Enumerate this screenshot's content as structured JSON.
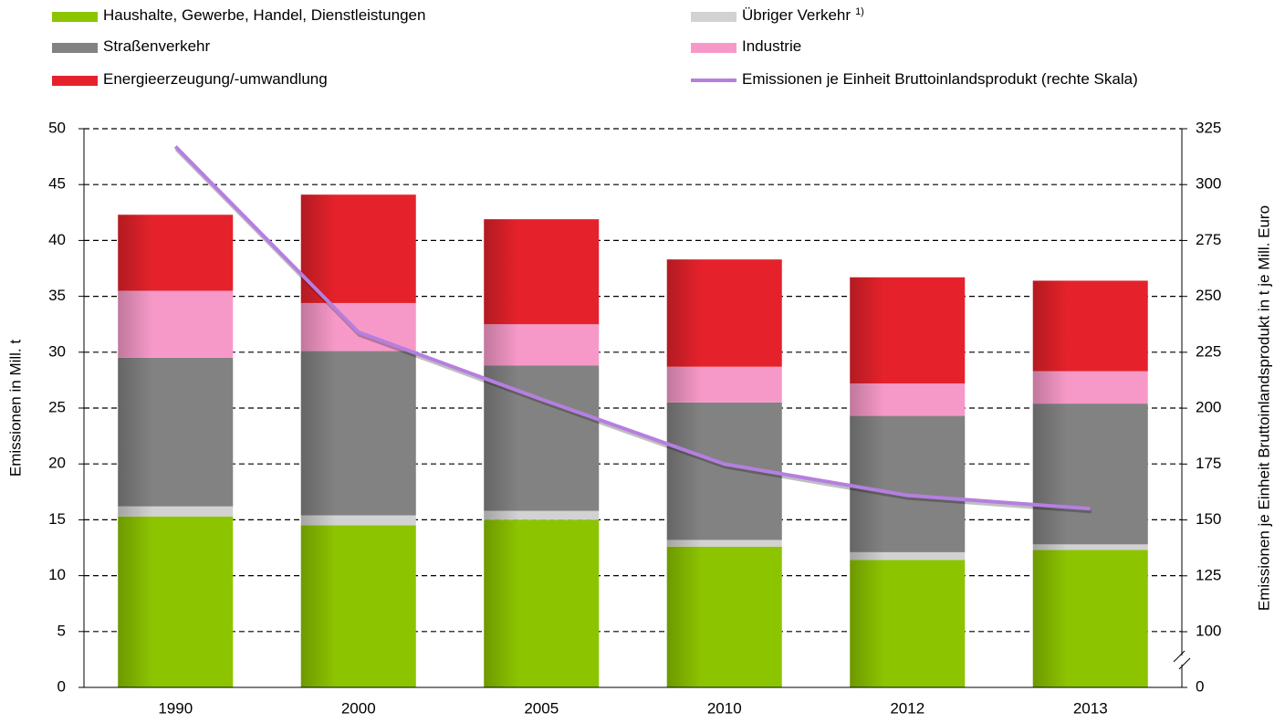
{
  "chart_data": {
    "type": "stacked_bar_line",
    "categories": [
      "1990",
      "2000",
      "2005",
      "2010",
      "2012",
      "2013"
    ],
    "series": [
      {
        "name": "Haushalte, Gewerbe, Handel, Dienstleistungen",
        "color": "#8cc400",
        "values": [
          15.3,
          14.5,
          15.0,
          12.6,
          11.4,
          12.3
        ]
      },
      {
        "name": "Übriger Verkehr",
        "note": "1)",
        "color": "#d2d2d2",
        "values": [
          0.9,
          0.9,
          0.8,
          0.6,
          0.7,
          0.5
        ]
      },
      {
        "name": "Straßenverkehr",
        "color": "#828282",
        "values": [
          13.3,
          14.7,
          13.0,
          12.3,
          12.2,
          12.6
        ]
      },
      {
        "name": "Industrie",
        "color": "#f799c8",
        "values": [
          6.0,
          4.3,
          3.7,
          3.2,
          2.9,
          2.9
        ]
      },
      {
        "name": "Energieerzeugung/-umwandlung",
        "color": "#e5222b",
        "values": [
          6.8,
          9.7,
          9.4,
          9.6,
          9.5,
          8.1
        ]
      },
      {
        "name": "Emissionen je Einheit Bruttoinlandsprodukt (rechte Skala)",
        "color": "#b57fe0",
        "axis": "y2",
        "type": "line",
        "values": [
          317,
          234,
          204,
          175,
          161,
          155
        ]
      }
    ],
    "y_label": "Emissionen in Mill. t",
    "y2_label": "Emissionen je Einheit Bruttoinlandsprodukt in t je Mill. Euro",
    "ylim": [
      0,
      50
    ],
    "yticks": [
      0,
      5,
      10,
      15,
      20,
      25,
      30,
      35,
      40,
      45,
      50
    ],
    "y2lim": [
      0,
      325
    ],
    "y2ticks": [
      0,
      100,
      125,
      150,
      175,
      200,
      225,
      250,
      275,
      300,
      325
    ],
    "y2_break": [
      0,
      100
    ],
    "grid": true
  }
}
